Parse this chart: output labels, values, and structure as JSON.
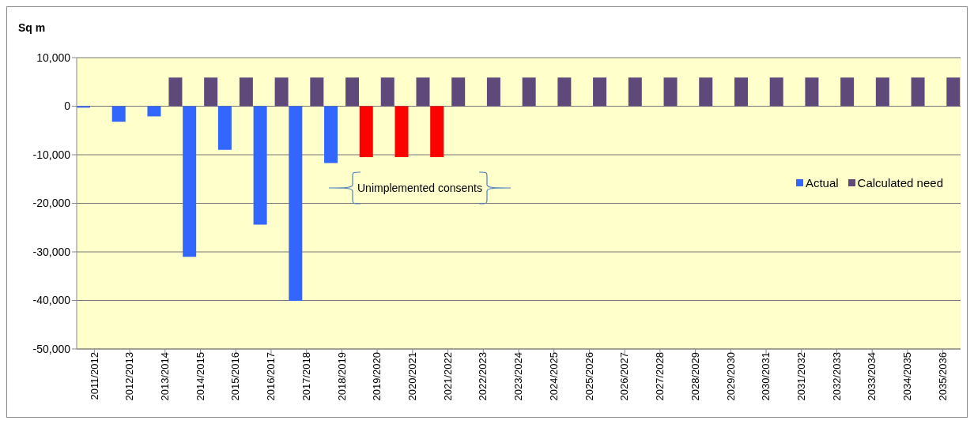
{
  "chart_data": {
    "type": "bar",
    "ylabel": "Sq m",
    "categories": [
      "2011/2012",
      "2012/2013",
      "2013/2014",
      "2014/2015",
      "2015/2016",
      "2016/2017",
      "2017/2018",
      "2018/2019",
      "2019/2020",
      "2020/2021",
      "2021/2022",
      "2022/2023",
      "2023/2024",
      "2024/2025",
      "2025/2026",
      "2026/2027",
      "2027/2028",
      "2028/2029",
      "2029/2030",
      "2030/2031",
      "2031/2032",
      "2032/2033",
      "2033/2034",
      "2034/2035",
      "2035/2036"
    ],
    "series": [
      {
        "name": "Actual",
        "color": "#3366ff",
        "colors": [
          "#3366ff",
          "#3366ff",
          "#3366ff",
          "#3366ff",
          "#3366ff",
          "#3366ff",
          "#3366ff",
          "#3366ff",
          "#ff0000",
          "#ff0000",
          "#ff0000",
          null,
          null,
          null,
          null,
          null,
          null,
          null,
          null,
          null,
          null,
          null,
          null,
          null,
          null
        ],
        "values": [
          -300,
          -3200,
          -2100,
          -31000,
          -9000,
          -24400,
          -40100,
          -11700,
          -10500,
          -10500,
          -10500,
          null,
          null,
          null,
          null,
          null,
          null,
          null,
          null,
          null,
          null,
          null,
          null,
          null,
          null
        ]
      },
      {
        "name": "Calculated need",
        "color": "#5f497a",
        "values": [
          null,
          null,
          5900,
          5900,
          5900,
          5900,
          5900,
          5900,
          5900,
          5900,
          5900,
          5900,
          5900,
          5900,
          5900,
          5900,
          5900,
          5900,
          5900,
          5900,
          5900,
          5900,
          5900,
          5900,
          5900
        ]
      }
    ],
    "annotations": [
      "Unimplemented consents"
    ],
    "ylim": [
      -50000,
      10000
    ],
    "yticks": [
      {
        "value": -50000,
        "label": "-50,000"
      },
      {
        "value": -40000,
        "label": "-40,000"
      },
      {
        "value": -30000,
        "label": "-30,000"
      },
      {
        "value": -20000,
        "label": "-20,000"
      },
      {
        "value": -10000,
        "label": "-10,000"
      },
      0,
      {
        "value": 10000,
        "label": "10,000"
      }
    ],
    "grid": "y",
    "legend": "right"
  }
}
